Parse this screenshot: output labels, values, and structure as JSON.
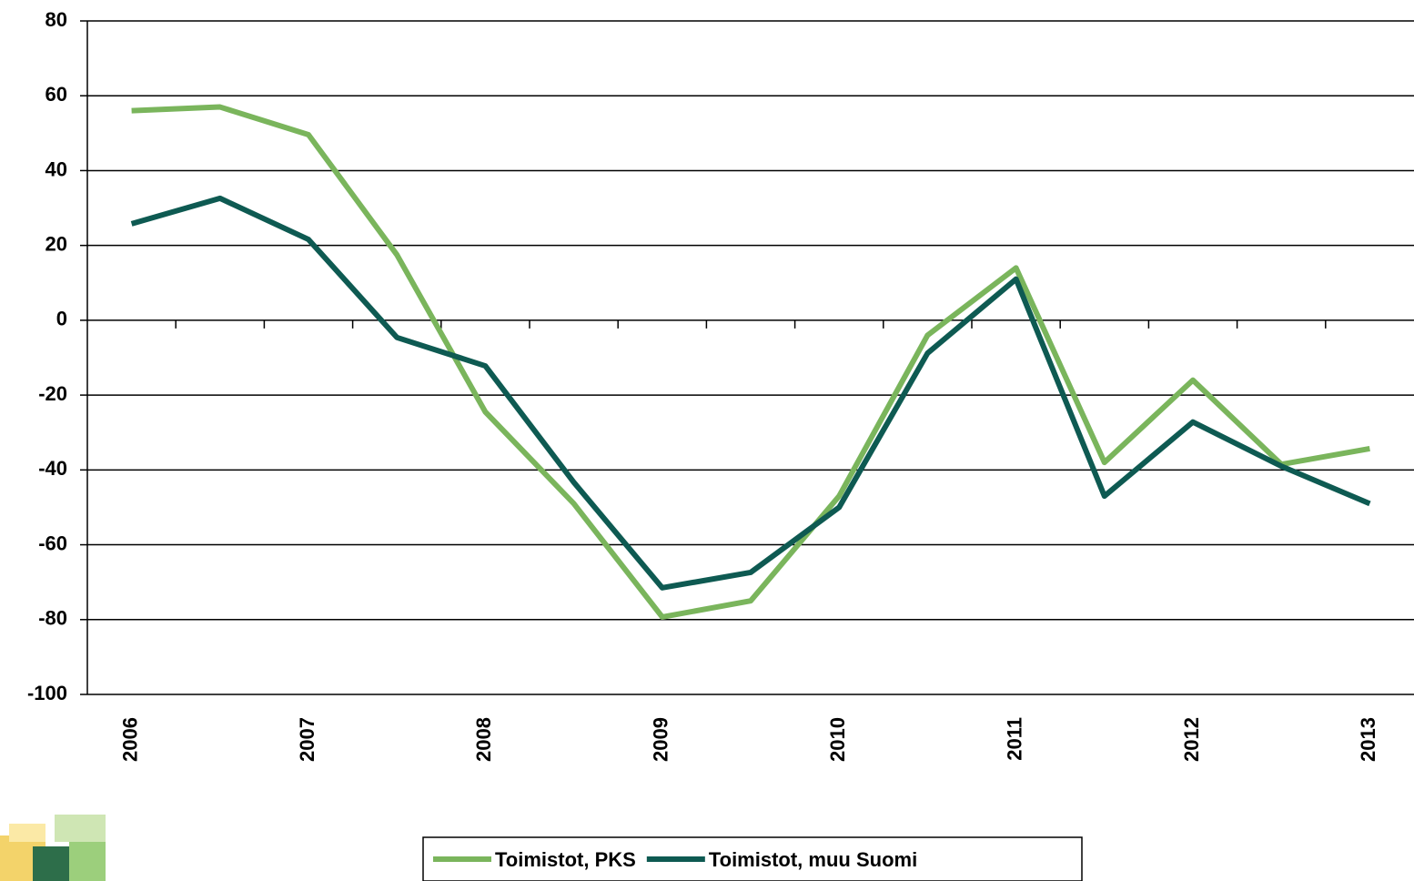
{
  "chart_data": {
    "type": "line",
    "categories": [
      "2006",
      null,
      "2007",
      null,
      "2008",
      null,
      "2009",
      null,
      "2010",
      null,
      "2011",
      null,
      "2012",
      null,
      "2013"
    ],
    "series": [
      {
        "name": "Toimistot, PKS",
        "color": "#7ab55c",
        "values": [
          56,
          57,
          49.6,
          17.5,
          -24.5,
          -49,
          -79.3,
          -75,
          -47,
          -4,
          14,
          -38,
          -16,
          -38.5,
          -34.3
        ]
      },
      {
        "name": "Toimistot, muu Suomi",
        "color": "#0e5a52",
        "values": [
          25.8,
          32.6,
          21.6,
          -4.6,
          -12.2,
          -43.3,
          -71.5,
          -67.4,
          -50,
          -8.8,
          11,
          -47,
          -27.2,
          -39,
          -49
        ]
      }
    ],
    "ylim": [
      -100,
      80
    ],
    "yticks": [
      -100,
      -80,
      -60,
      -40,
      -20,
      0,
      20,
      40,
      60,
      80
    ],
    "grid": true,
    "legend": "bottom"
  }
}
